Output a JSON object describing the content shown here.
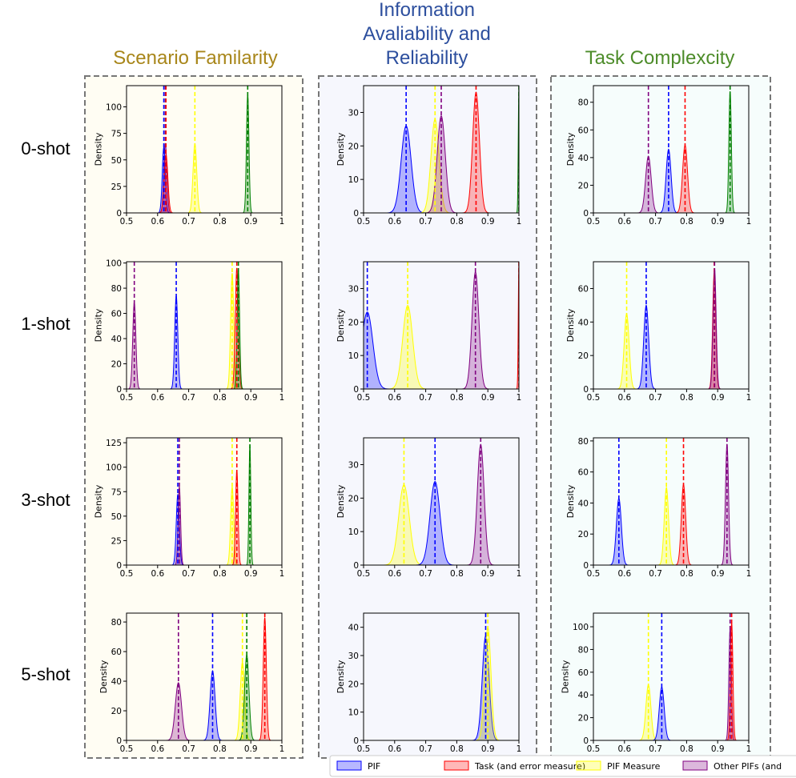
{
  "colors": {
    "PIF": "#0000ff",
    "Task": "#ff0000",
    "PIF Measure": "#ffff00",
    "Other": "#800080",
    "extra": "#008000",
    "sf_title": "#a8861a",
    "iar_title": "#2d4f9e",
    "tc_title": "#4d8c2a",
    "sf_bg": "#fffdf3",
    "iar_bg": "#f6f7fd",
    "tc_bg": "#f6fdfc"
  },
  "columns": [
    {
      "title_lines": [
        "Scenario Familarity"
      ],
      "color_key": "sf_title",
      "bg_key": "sf_bg"
    },
    {
      "title_lines": [
        "Information",
        "Avaliability and",
        "Reliability"
      ],
      "color_key": "iar_title",
      "bg_key": "iar_bg"
    },
    {
      "title_lines": [
        "Task Complexcity"
      ],
      "color_key": "tc_title",
      "bg_key": "tc_bg"
    }
  ],
  "rows": [
    "0-shot",
    "1-shot",
    "3-shot",
    "5-shot"
  ],
  "legend": [
    {
      "label": "PIF",
      "color_key": "PIF"
    },
    {
      "label": "Task (and error measure)",
      "color_key": "Task"
    },
    {
      "label": "PIF Measure",
      "color_key": "PIF Measure"
    },
    {
      "label": "Other PIFs (and",
      "color_key": "Other"
    }
  ],
  "chart_data": [
    {
      "type": "area",
      "column": "Scenario Familarity",
      "row": "0-shot",
      "ylabel": "Density",
      "xlim": [
        0.5,
        1.0
      ],
      "xticks": [
        0.5,
        0.6,
        0.7,
        0.8,
        0.9,
        1.0
      ],
      "ylim": [
        0,
        120
      ],
      "yticks": [
        0,
        25,
        50,
        75,
        100
      ],
      "series": [
        {
          "color_key": "Other",
          "mean": 0.625,
          "peak": 65,
          "sd": 0.005
        },
        {
          "color_key": "PIF",
          "mean": 0.62,
          "peak": 62,
          "sd": 0.005
        },
        {
          "color_key": "Task",
          "mean": 0.627,
          "peak": 55,
          "sd": 0.006
        },
        {
          "color_key": "PIF Measure",
          "mean": 0.72,
          "peak": 65,
          "sd": 0.006
        },
        {
          "color_key": "extra",
          "mean": 0.89,
          "peak": 112,
          "sd": 0.004
        }
      ]
    },
    {
      "type": "area",
      "column": "Information Avaliability and Reliability",
      "row": "0-shot",
      "ylabel": "Density",
      "xlim": [
        0.5,
        1.0
      ],
      "xticks": [
        0.5,
        0.6,
        0.7,
        0.8,
        0.9,
        1.0
      ],
      "ylim": [
        0,
        38
      ],
      "yticks": [
        0,
        10,
        20,
        30
      ],
      "series": [
        {
          "color_key": "PIF",
          "mean": 0.637,
          "peak": 26,
          "sd": 0.016
        },
        {
          "color_key": "PIF Measure",
          "mean": 0.73,
          "peak": 28,
          "sd": 0.013
        },
        {
          "color_key": "Other",
          "mean": 0.75,
          "peak": 29,
          "sd": 0.013
        },
        {
          "color_key": "Task",
          "mean": 0.862,
          "peak": 36,
          "sd": 0.011
        },
        {
          "color_key": "extra",
          "mean": 1.0,
          "peak": 38,
          "sd": 0.002
        }
      ]
    },
    {
      "type": "area",
      "column": "Task Complexcity",
      "row": "0-shot",
      "ylabel": "Density",
      "xlim": [
        0.5,
        1.0
      ],
      "xticks": [
        0.5,
        0.6,
        0.7,
        0.8,
        0.9,
        1.0
      ],
      "ylim": [
        0,
        92
      ],
      "yticks": [
        0,
        20,
        40,
        60,
        80
      ],
      "series": [
        {
          "color_key": "Other",
          "mean": 0.677,
          "peak": 41,
          "sd": 0.009
        },
        {
          "color_key": "PIF",
          "mean": 0.742,
          "peak": 46,
          "sd": 0.008
        },
        {
          "color_key": "Task",
          "mean": 0.795,
          "peak": 49,
          "sd": 0.008
        },
        {
          "color_key": "extra",
          "mean": 0.94,
          "peak": 88,
          "sd": 0.004
        }
      ]
    },
    {
      "type": "area",
      "column": "Scenario Familarity",
      "row": "1-shot",
      "ylabel": "Density",
      "xlim": [
        0.5,
        1.0
      ],
      "xticks": [
        0.5,
        0.6,
        0.7,
        0.8,
        0.9,
        1.0
      ],
      "ylim": [
        0,
        101
      ],
      "yticks": [
        0,
        20,
        40,
        60,
        80,
        100
      ],
      "series": [
        {
          "color_key": "Other",
          "mean": 0.525,
          "peak": 69,
          "sd": 0.005
        },
        {
          "color_key": "PIF",
          "mean": 0.66,
          "peak": 74,
          "sd": 0.005
        },
        {
          "color_key": "PIF Measure",
          "mean": 0.84,
          "peak": 92,
          "sd": 0.005
        },
        {
          "color_key": "Task",
          "mean": 0.855,
          "peak": 96,
          "sd": 0.005
        },
        {
          "color_key": "extra",
          "mean": 0.86,
          "peak": 94,
          "sd": 0.004
        }
      ]
    },
    {
      "type": "area",
      "column": "Information Avaliability and Reliability",
      "row": "1-shot",
      "ylabel": "Density",
      "xlim": [
        0.5,
        1.0
      ],
      "xticks": [
        0.5,
        0.6,
        0.7,
        0.8,
        0.9,
        1.0
      ],
      "ylim": [
        0,
        38
      ],
      "yticks": [
        0,
        10,
        20,
        30
      ],
      "series": [
        {
          "color_key": "PIF",
          "mean": 0.512,
          "peak": 23,
          "sd": 0.018
        },
        {
          "color_key": "PIF Measure",
          "mean": 0.642,
          "peak": 25,
          "sd": 0.016
        },
        {
          "color_key": "Other",
          "mean": 0.86,
          "peak": 35,
          "sd": 0.011
        },
        {
          "color_key": "Task",
          "mean": 1.0,
          "peak": 38,
          "sd": 0.002
        }
      ]
    },
    {
      "type": "area",
      "column": "Task Complexcity",
      "row": "1-shot",
      "ylabel": "Density",
      "xlim": [
        0.5,
        1.0
      ],
      "xticks": [
        0.5,
        0.6,
        0.7,
        0.8,
        0.9,
        1.0
      ],
      "ylim": [
        0,
        76
      ],
      "yticks": [
        0,
        20,
        40,
        60
      ],
      "series": [
        {
          "color_key": "PIF Measure",
          "mean": 0.607,
          "peak": 45,
          "sd": 0.008
        },
        {
          "color_key": "PIF",
          "mean": 0.67,
          "peak": 50,
          "sd": 0.008
        },
        {
          "color_key": "Task",
          "mean": 0.889,
          "peak": 70,
          "sd": 0.005
        },
        {
          "color_key": "Other",
          "mean": 0.89,
          "peak": 72,
          "sd": 0.005
        }
      ]
    },
    {
      "type": "area",
      "column": "Scenario Familarity",
      "row": "3-shot",
      "ylabel": "Density",
      "xlim": [
        0.5,
        1.0
      ],
      "xticks": [
        0.5,
        0.6,
        0.7,
        0.8,
        0.9,
        1.0
      ],
      "ylim": [
        0,
        130
      ],
      "yticks": [
        0,
        25,
        50,
        75,
        100,
        125
      ],
      "series": [
        {
          "color_key": "PIF",
          "mean": 0.665,
          "peak": 72,
          "sd": 0.005
        },
        {
          "color_key": "Other",
          "mean": 0.67,
          "peak": 80,
          "sd": 0.004
        },
        {
          "color_key": "PIF Measure",
          "mean": 0.84,
          "peak": 80,
          "sd": 0.005
        },
        {
          "color_key": "Task",
          "mean": 0.855,
          "peak": 97,
          "sd": 0.004
        },
        {
          "color_key": "extra",
          "mean": 0.897,
          "peak": 123,
          "sd": 0.003
        }
      ]
    },
    {
      "type": "area",
      "column": "Information Avaliability and Reliability",
      "row": "3-shot",
      "ylabel": "Density",
      "xlim": [
        0.5,
        1.0
      ],
      "xticks": [
        0.5,
        0.6,
        0.7,
        0.8,
        0.9,
        1.0
      ],
      "ylim": [
        0,
        38
      ],
      "yticks": [
        0,
        10,
        20,
        30
      ],
      "series": [
        {
          "color_key": "PIF Measure",
          "mean": 0.63,
          "peak": 24,
          "sd": 0.017
        },
        {
          "color_key": "PIF",
          "mean": 0.73,
          "peak": 25,
          "sd": 0.016
        },
        {
          "color_key": "Other",
          "mean": 0.877,
          "peak": 36,
          "sd": 0.011
        }
      ]
    },
    {
      "type": "area",
      "column": "Task Complexcity",
      "row": "3-shot",
      "ylabel": "Density",
      "xlim": [
        0.5,
        1.0
      ],
      "xticks": [
        0.5,
        0.6,
        0.7,
        0.8,
        0.9,
        1.0
      ],
      "ylim": [
        0,
        82
      ],
      "yticks": [
        0,
        20,
        40,
        60,
        80
      ],
      "series": [
        {
          "color_key": "PIF",
          "mean": 0.582,
          "peak": 43,
          "sd": 0.008
        },
        {
          "color_key": "PIF Measure",
          "mean": 0.735,
          "peak": 50,
          "sd": 0.007
        },
        {
          "color_key": "Task",
          "mean": 0.79,
          "peak": 52,
          "sd": 0.007
        },
        {
          "color_key": "Other",
          "mean": 0.93,
          "peak": 78,
          "sd": 0.005
        }
      ]
    },
    {
      "type": "area",
      "column": "Scenario Familarity",
      "row": "5-shot",
      "ylabel": "Density",
      "xlim": [
        0.5,
        1.0
      ],
      "xticks": [
        0.5,
        0.6,
        0.7,
        0.8,
        0.9,
        1.0
      ],
      "ylim": [
        0,
        86
      ],
      "yticks": [
        0,
        20,
        40,
        60,
        80
      ],
      "series": [
        {
          "color_key": "Other",
          "mean": 0.667,
          "peak": 39,
          "sd": 0.01
        },
        {
          "color_key": "PIF",
          "mean": 0.777,
          "peak": 47,
          "sd": 0.008
        },
        {
          "color_key": "PIF Measure",
          "mean": 0.873,
          "peak": 53,
          "sd": 0.007
        },
        {
          "color_key": "extra",
          "mean": 0.887,
          "peak": 58,
          "sd": 0.007
        },
        {
          "color_key": "Task",
          "mean": 0.945,
          "peak": 83,
          "sd": 0.005
        }
      ]
    },
    {
      "type": "area",
      "column": "Information Avaliability and Reliability",
      "row": "5-shot",
      "ylabel": "Density",
      "xlim": [
        0.5,
        1.0
      ],
      "xticks": [
        0.5,
        0.6,
        0.7,
        0.8,
        0.9,
        1.0
      ],
      "ylim": [
        0,
        45
      ],
      "yticks": [
        0,
        10,
        20,
        30,
        40
      ],
      "series": [
        {
          "color_key": "PIF",
          "mean": 0.893,
          "peak": 37,
          "sd": 0.011
        },
        {
          "color_key": "PIF Measure",
          "mean": 0.9,
          "peak": 40,
          "sd": 0.01
        }
      ]
    },
    {
      "type": "area",
      "column": "Task Complexcity",
      "row": "5-shot",
      "ylabel": "Density",
      "xlim": [
        0.5,
        1.0
      ],
      "xticks": [
        0.5,
        0.6,
        0.7,
        0.8,
        0.9,
        1.0
      ],
      "ylim": [
        0,
        112
      ],
      "yticks": [
        0,
        20,
        40,
        60,
        80,
        100
      ],
      "series": [
        {
          "color_key": "PIF Measure",
          "mean": 0.677,
          "peak": 49,
          "sd": 0.008
        },
        {
          "color_key": "PIF",
          "mean": 0.72,
          "peak": 47,
          "sd": 0.008
        },
        {
          "color_key": "Other",
          "mean": 0.94,
          "peak": 98,
          "sd": 0.004
        },
        {
          "color_key": "Task",
          "mean": 0.945,
          "peak": 104,
          "sd": 0.004
        }
      ]
    }
  ]
}
